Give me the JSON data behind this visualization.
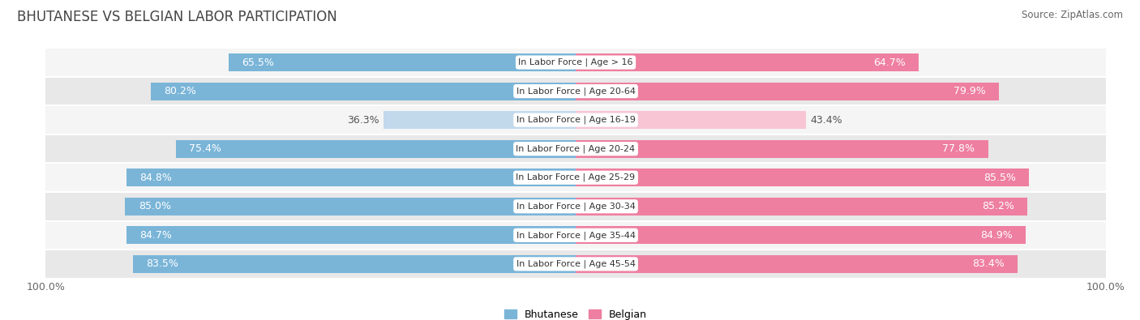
{
  "title": "BHUTANESE VS BELGIAN LABOR PARTICIPATION",
  "source": "Source: ZipAtlas.com",
  "categories": [
    "In Labor Force | Age > 16",
    "In Labor Force | Age 20-64",
    "In Labor Force | Age 16-19",
    "In Labor Force | Age 20-24",
    "In Labor Force | Age 25-29",
    "In Labor Force | Age 30-34",
    "In Labor Force | Age 35-44",
    "In Labor Force | Age 45-54"
  ],
  "bhutanese": [
    65.5,
    80.2,
    36.3,
    75.4,
    84.8,
    85.0,
    84.7,
    83.5
  ],
  "belgian": [
    64.7,
    79.9,
    43.4,
    77.8,
    85.5,
    85.2,
    84.9,
    83.4
  ],
  "bhutanese_color": "#7AB5D8",
  "belgian_color": "#EE7FA0",
  "bhutanese_light_color": "#C2D9EB",
  "belgian_light_color": "#F8C5D5",
  "bg_row_light": "#F5F5F5",
  "bg_row_dark": "#E8E8E8",
  "bar_height": 0.62,
  "legend_labels": [
    "Bhutanese",
    "Belgian"
  ],
  "x_max": 100.0,
  "title_fontsize": 12,
  "source_fontsize": 8.5,
  "bar_label_fontsize": 9,
  "category_fontsize": 8,
  "axis_label_fontsize": 9,
  "light_row_index": 2
}
